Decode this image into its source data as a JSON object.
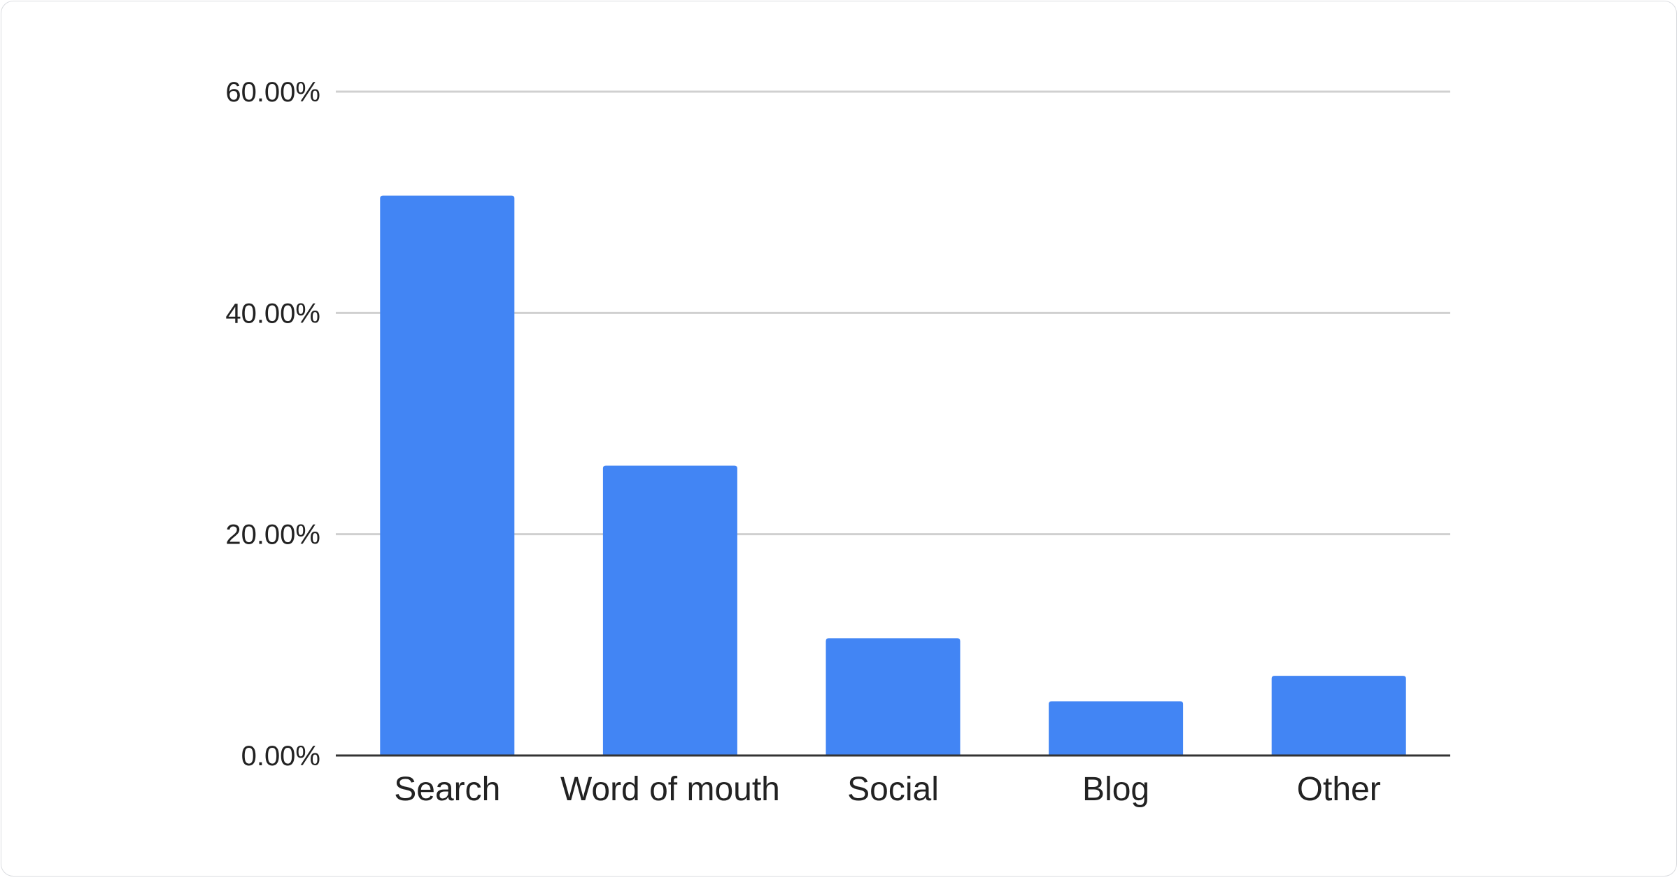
{
  "chart_data": {
    "type": "bar",
    "categories": [
      "Search",
      "Word of mouth",
      "Social",
      "Blog",
      "Other"
    ],
    "values": [
      50.6,
      26.2,
      10.6,
      4.9,
      7.2
    ],
    "title": "",
    "xlabel": "",
    "ylabel": "",
    "ylim": [
      0,
      60
    ],
    "yticks": [
      0,
      20,
      40,
      60
    ],
    "ytick_labels": [
      "0.00%",
      "20.00%",
      "40.00%",
      "60.00%"
    ],
    "grid": true,
    "legend": "none",
    "bar_color": "#4285f4"
  }
}
